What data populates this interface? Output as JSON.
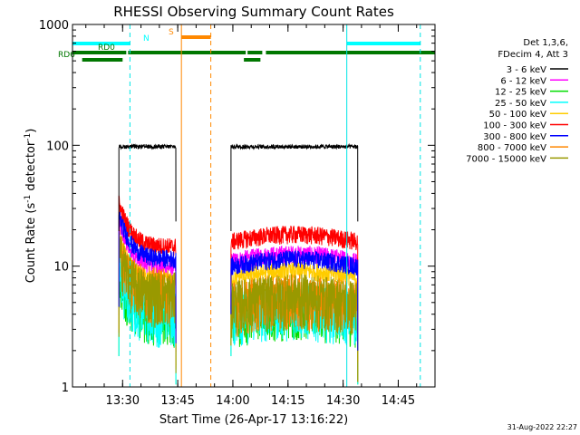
{
  "chart_data": {
    "type": "line",
    "title": "RHESSI Observing Summary Count Rates",
    "xlabel": "Start Time (26-Apr-17 13:16:22)",
    "ylabel_main": "Count Rate (s",
    "ylabel_sup1": "-1",
    "ylabel_mid": " detector",
    "ylabel_sup2": "-1",
    "ylabel_end": ")",
    "y_scale": "log",
    "ylim": [
      1,
      1000
    ],
    "xlim": [
      "13:16:22",
      "14:55:00"
    ],
    "x_ticks": [
      "13:30",
      "13:45",
      "14:00",
      "14:15",
      "14:30",
      "14:45"
    ],
    "y_ticks": [
      "1",
      "10",
      "100",
      "1000"
    ],
    "legend_header": [
      "Det 1,3,6,",
      "FDecim 4, Att 3"
    ],
    "legend_position": "top-right",
    "series": [
      {
        "name": "3 - 6 keV",
        "color": "#000000",
        "level_a": [
          95,
          100
        ],
        "level_b": [
          95,
          100
        ]
      },
      {
        "name": "6 - 12 keV",
        "color": "#ff00ff",
        "level_a": [
          9.5,
          10
        ],
        "level_b": [
          10,
          12
        ]
      },
      {
        "name": "12 - 25 keV",
        "color": "#00dd00",
        "level_a": [
          4,
          5
        ],
        "level_b": [
          4,
          5
        ]
      },
      {
        "name": "25 - 50 keV",
        "color": "#00ffff",
        "level_a": [
          4,
          5
        ],
        "level_b": [
          4,
          5
        ]
      },
      {
        "name": "50 - 100 keV",
        "color": "#ffcc00",
        "level_a": [
          7,
          8
        ],
        "level_b": [
          7,
          9
        ]
      },
      {
        "name": "100 - 300 keV",
        "color": "#ff0000",
        "level_a": [
          13,
          16
        ],
        "level_b": [
          14,
          18
        ]
      },
      {
        "name": "300 - 800 keV",
        "color": "#0000ff",
        "level_a": [
          11,
          12
        ],
        "level_b": [
          9,
          11
        ]
      },
      {
        "name": "800 - 7000 keV",
        "color": "#ff8800",
        "level_a": [
          6.5,
          7.5
        ],
        "level_b": [
          5,
          6
        ]
      },
      {
        "name": "7000 - 15000 keV",
        "color": "#999900",
        "level_a": [
          6,
          7
        ],
        "level_b": [
          5,
          6
        ]
      }
    ],
    "data_intervals": [
      [
        "13:29:00",
        "13:44:30"
      ],
      [
        "13:59:30",
        "14:34:00"
      ]
    ],
    "vertical_lines": [
      {
        "time": "13:16:22",
        "color": "#00e5e5",
        "style": "solid"
      },
      {
        "time": "13:32:00",
        "color": "#00e5e5",
        "style": "dashed"
      },
      {
        "time": "13:46:00",
        "color": "#ff8800",
        "style": "solid"
      },
      {
        "time": "13:54:00",
        "color": "#ff8800",
        "style": "dashed"
      },
      {
        "time": "14:31:00",
        "color": "#00e5e5",
        "style": "solid"
      },
      {
        "time": "14:51:00",
        "color": "#00e5e5",
        "style": "dashed"
      }
    ],
    "status_bars": [
      {
        "label": "N",
        "color": "#00ffff",
        "intervals": [
          [
            "13:16:22",
            "13:32:00"
          ],
          [
            "14:31:00",
            "14:51:00"
          ]
        ]
      },
      {
        "label": "S",
        "color": "#ff8800",
        "intervals": [
          [
            "13:46:00",
            "13:54:00"
          ]
        ]
      },
      {
        "label": "RD0",
        "color": "#007700",
        "intervals": [
          [
            "13:16:22",
            "13:31:00"
          ],
          [
            "13:31:30",
            "14:03:30"
          ],
          [
            "14:04:00",
            "14:08:00"
          ],
          [
            "14:09:00",
            "14:55:00"
          ]
        ]
      },
      {
        "label": "RD6",
        "color": "#007700",
        "intervals": [
          [
            "13:19:00",
            "13:30:00"
          ],
          [
            "14:03:00",
            "14:07:30"
          ]
        ]
      }
    ],
    "grid": false
  },
  "footer_date": "31-Aug-2022 22:27"
}
